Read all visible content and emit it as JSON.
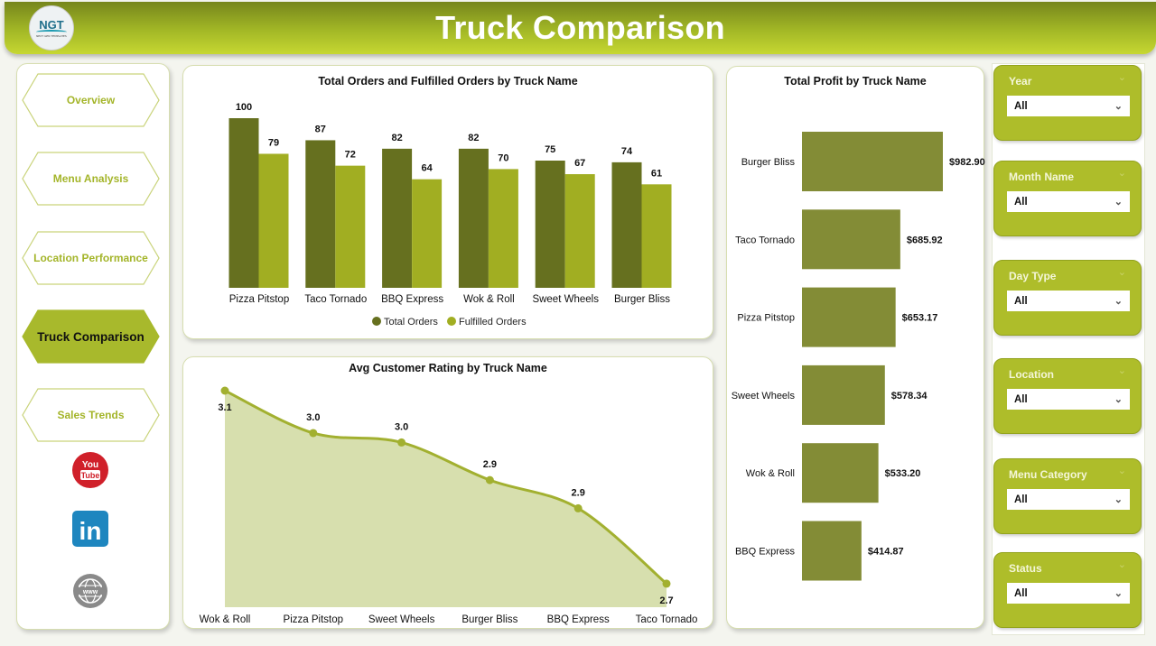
{
  "header": {
    "title": "Truck Comparison",
    "logo_text": "NGT",
    "logo_subtext": "NEXT GEN TEMPLATES"
  },
  "nav": {
    "items": [
      {
        "label": "Overview",
        "active": false
      },
      {
        "label": "Menu Analysis",
        "active": false
      },
      {
        "label": "Location Performance",
        "active": false
      },
      {
        "label": "Truck Comparison",
        "active": true
      },
      {
        "label": "Sales Trends",
        "active": false
      }
    ]
  },
  "social": {
    "youtube": "youtube-icon",
    "youtube_text": "You Tube",
    "linkedin": "linkedin-icon",
    "linkedin_text": "in",
    "web": "globe-www-icon",
    "web_text": "www"
  },
  "colors": {
    "header": "#a3b826",
    "dark_olive": "#66701f",
    "light_olive": "#a1ae22",
    "profit_bar": "#838c36",
    "line": "#a2b030",
    "area": "#d7dfae",
    "filter": "#aebd2a"
  },
  "filters": [
    {
      "label": "Year",
      "value": "All"
    },
    {
      "label": "Month Name",
      "value": "All"
    },
    {
      "label": "Day Type",
      "value": "All"
    },
    {
      "label": "Location",
      "value": "All"
    },
    {
      "label": "Menu Category",
      "value": "All"
    },
    {
      "label": "Status",
      "value": "All"
    }
  ],
  "chart_data": [
    {
      "type": "bar",
      "title": "Total Orders and Fulfilled Orders by Truck Name",
      "categories": [
        "Pizza Pitstop",
        "Taco Tornado",
        "BBQ Express",
        "Wok & Roll",
        "Sweet Wheels",
        "Burger Bliss"
      ],
      "series": [
        {
          "name": "Total Orders",
          "values": [
            100,
            87,
            82,
            82,
            75,
            74
          ]
        },
        {
          "name": "Fulfilled Orders",
          "values": [
            79,
            72,
            64,
            70,
            67,
            61
          ]
        }
      ],
      "ylim": [
        0,
        100
      ],
      "grid": false,
      "legend": "bottom"
    },
    {
      "type": "bar",
      "orientation": "horizontal",
      "title": "Total Profit by Truck Name",
      "categories": [
        "Burger Bliss",
        "Taco Tornado",
        "Pizza Pitstop",
        "Sweet Wheels",
        "Wok & Roll",
        "BBQ Express"
      ],
      "values": [
        982.9,
        685.92,
        653.17,
        578.34,
        533.2,
        414.87
      ],
      "labels": [
        "$982.90",
        "$685.92",
        "$653.17",
        "$578.34",
        "$533.20",
        "$414.87"
      ],
      "grid": false
    },
    {
      "type": "area",
      "title": "Avg Customer Rating by Truck Name",
      "categories": [
        "Wok & Roll",
        "Pizza Pitstop",
        "Sweet Wheels",
        "Burger Bliss",
        "BBQ Express",
        "Taco Tornado"
      ],
      "values": [
        3.12,
        3.03,
        3.01,
        2.93,
        2.87,
        2.71
      ],
      "labels": [
        "3.1",
        "3.0",
        "3.0",
        "2.9",
        "2.9",
        "2.7"
      ],
      "ylim": [
        2.66,
        3.12
      ],
      "grid": false
    }
  ]
}
